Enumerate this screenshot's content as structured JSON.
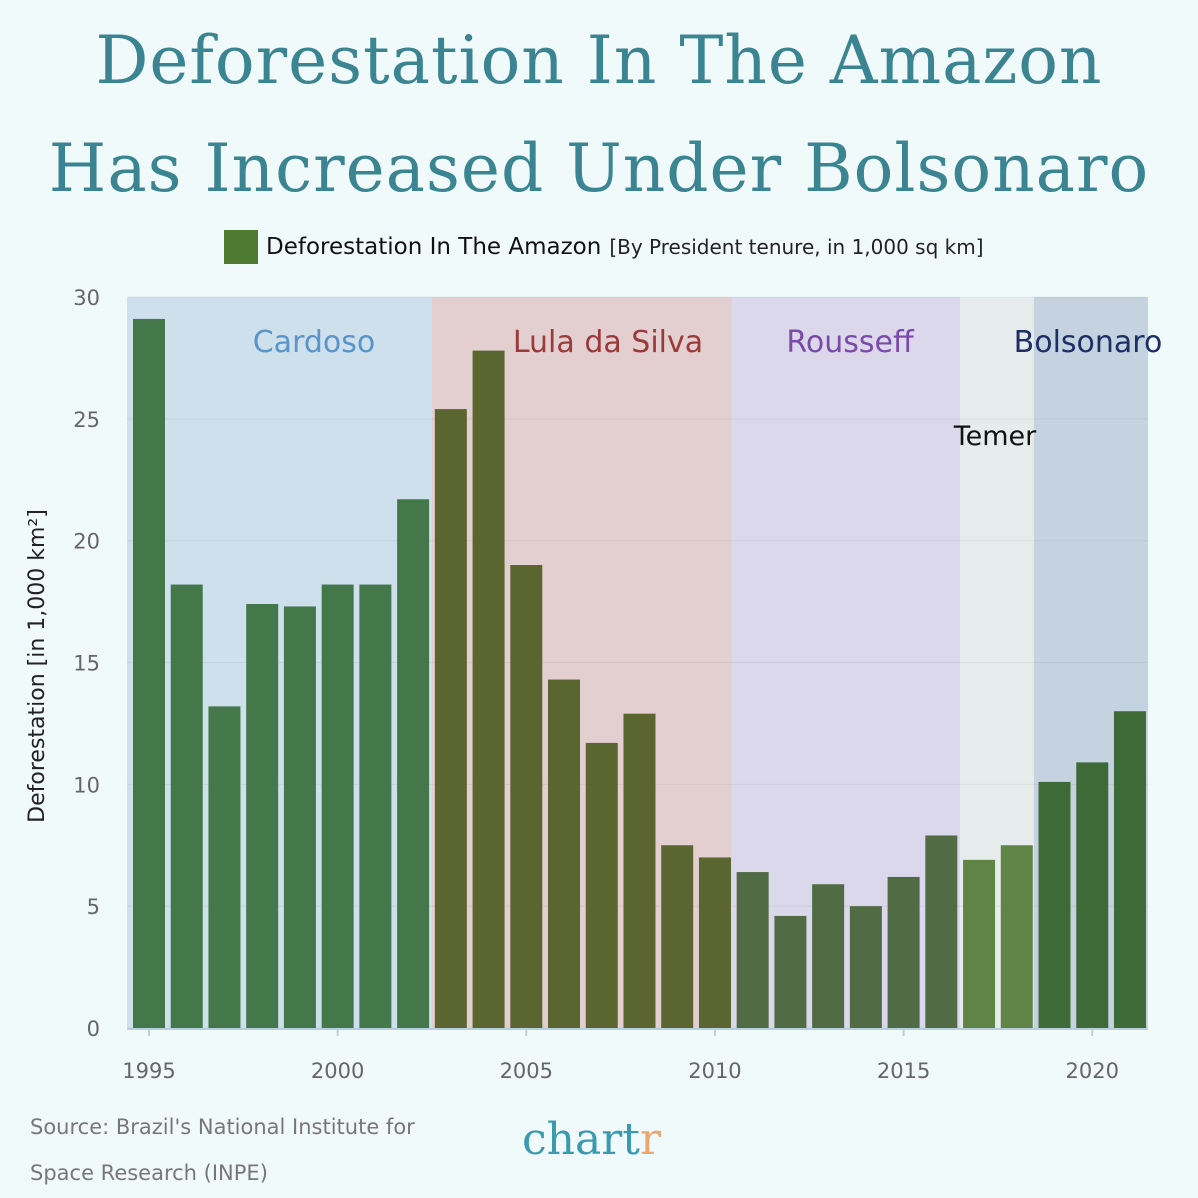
{
  "title": {
    "line1": "Deforestation In The Amazon",
    "line2": "Has Increased Under Bolsonaro"
  },
  "legend": {
    "label": "Deforestation In The Amazon",
    "sub": "[By President tenure, in 1,000 sq km]",
    "color": "#4e7a32"
  },
  "source": {
    "line1": "Source: Brazil's National Institute for",
    "line2": "Space Research (INPE)"
  },
  "logo": {
    "main": "chart",
    "accent": "r"
  },
  "chart_data": {
    "type": "bar",
    "title": "Deforestation In The Amazon",
    "xlabel": "",
    "ylabel": "Deforestation [in 1,000 km²]",
    "ylim": [
      0,
      30
    ],
    "yticks": [
      "0",
      "5",
      "10",
      "15",
      "20",
      "25",
      "30"
    ],
    "xticks": [
      "1995",
      "2000",
      "2005",
      "2010",
      "2015",
      "2020"
    ],
    "grid": true,
    "categories": [
      1995,
      1996,
      1997,
      1998,
      1999,
      2000,
      2001,
      2002,
      2003,
      2004,
      2005,
      2006,
      2007,
      2008,
      2009,
      2010,
      2011,
      2012,
      2013,
      2014,
      2015,
      2016,
      2017,
      2018,
      2019,
      2020,
      2021
    ],
    "values": [
      29.1,
      18.2,
      13.2,
      17.4,
      17.3,
      18.2,
      18.2,
      21.7,
      25.4,
      27.8,
      19.0,
      14.3,
      11.7,
      12.9,
      7.5,
      7.0,
      6.4,
      4.6,
      5.9,
      5.0,
      6.2,
      7.9,
      6.9,
      7.5,
      10.1,
      10.9,
      13.0
    ],
    "presidents": [
      {
        "name": "Cardoso",
        "start": 1994.4,
        "end": 2002.5,
        "bg": "#cde0ec",
        "bar": "#44784a",
        "label_color": "#5b94c9"
      },
      {
        "name": "Lula da Silva",
        "start": 2002.5,
        "end": 2010.45,
        "bg": "#e4cfd0",
        "bar": "#5a6530",
        "label_color": "#9a3a3a"
      },
      {
        "name": "Rousseff",
        "start": 2010.45,
        "end": 2016.5,
        "bg": "#dcd8ec",
        "bar": "#516b45",
        "label_color": "#7b4aa8"
      },
      {
        "name": "Temer",
        "start": 2016.5,
        "end": 2018.45,
        "bg": "#e6ecec",
        "bar": "#5f8446",
        "label_color": "#111111"
      },
      {
        "name": "Bolsonaro",
        "start": 2018.45,
        "end": 2021.5,
        "bg": "#c5d3e0",
        "bar": "#3e6a37",
        "label_color": "#1e2f66"
      }
    ]
  }
}
